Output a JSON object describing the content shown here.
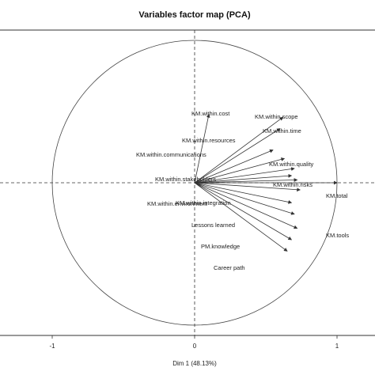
{
  "chart_data": {
    "type": "scatter",
    "title": "Variables factor map (PCA)",
    "xlabel": "Dim 1 (48.13%)",
    "ylabel": "",
    "xlim": [
      -1.2,
      1.2
    ],
    "ylim": [
      -1.08,
      1.08
    ],
    "x_ticks": [
      "-1",
      "0",
      "1"
    ],
    "grid": false,
    "circle_radius": 1,
    "variables": [
      {
        "label": "KM.within.cost",
        "x": 0.1,
        "y": 0.48
      },
      {
        "label": "KM.within.scope",
        "x": 0.62,
        "y": 0.46
      },
      {
        "label": "KM.within.time",
        "x": 0.6,
        "y": 0.38
      },
      {
        "label": "KM.within.resources",
        "x": 0.55,
        "y": 0.23
      },
      {
        "label": "KM.within.communications",
        "x": 0.63,
        "y": 0.17
      },
      {
        "label": "KM.within.quality",
        "x": 0.7,
        "y": 0.1
      },
      {
        "label": "KM.within.stakeholders",
        "x": 0.68,
        "y": 0.05
      },
      {
        "label": "KM.within.risks",
        "x": 0.72,
        "y": 0.02
      },
      {
        "label": "KM.total",
        "x": 1.0,
        "y": 0.0
      },
      {
        "label": "KM.within.environment",
        "x": 0.74,
        "y": -0.05
      },
      {
        "label": "KM.within.integration",
        "x": 0.68,
        "y": -0.14
      },
      {
        "label": "Lessons learned",
        "x": 0.7,
        "y": -0.22
      },
      {
        "label": "KM.tools",
        "x": 0.72,
        "y": -0.32
      },
      {
        "label": "PM.knowledge",
        "x": 0.68,
        "y": -0.4
      },
      {
        "label": "Career path",
        "x": 0.65,
        "y": -0.48
      }
    ]
  }
}
